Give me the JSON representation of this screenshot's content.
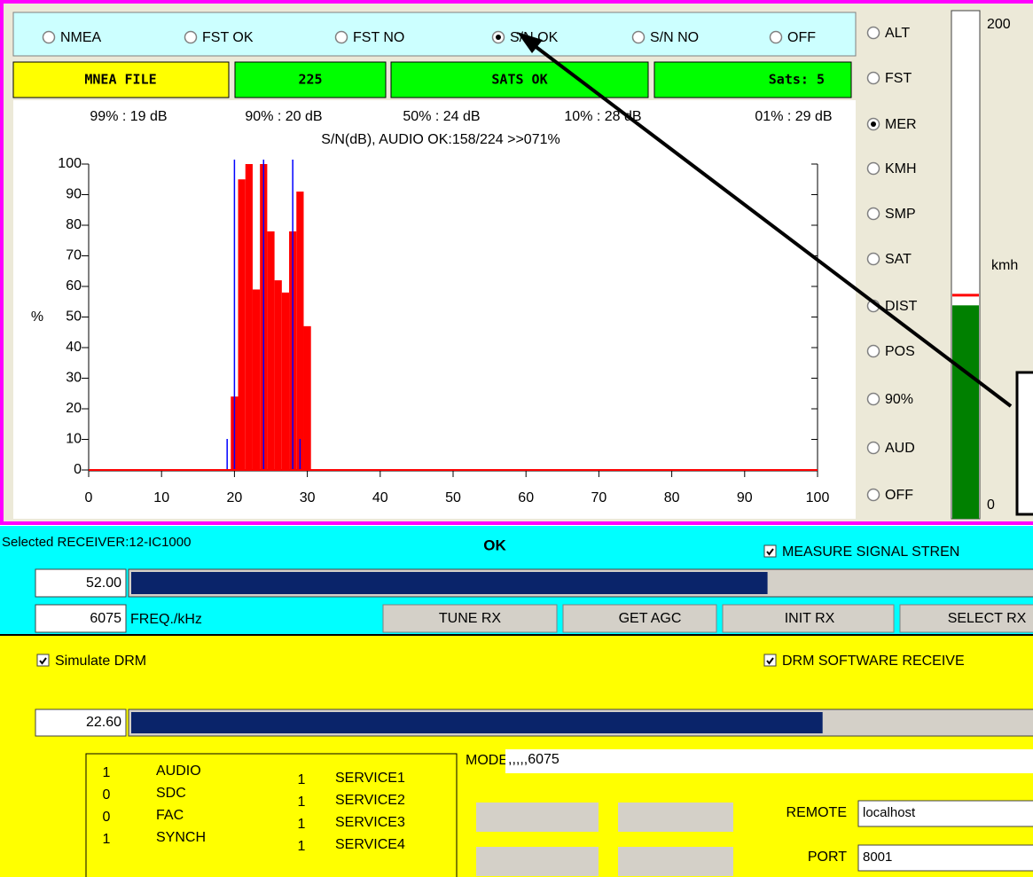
{
  "mode_options": [
    "NMEA",
    "FST OK",
    "FST NO",
    "S/N OK",
    "S/N NO",
    "OFF"
  ],
  "mode_selected": 3,
  "status": [
    "MNEA FILE",
    "225",
    "SATS OK",
    "Sats: 5"
  ],
  "chart_data": {
    "type": "histogram",
    "title": "S/N(dB), AUDIO OK:158/224 >>071%",
    "ylabel": "%",
    "stats": [
      {
        "value": 19,
        "label": "99% : 19 dB"
      },
      {
        "value": 20,
        "label": "90% : 20 dB"
      },
      {
        "value": 24,
        "label": "50% : 24 dB"
      },
      {
        "value": 28,
        "label": "10% : 28 dB"
      },
      {
        "value": 29,
        "label": "01% : 29 dB"
      }
    ],
    "bins": [
      19.5,
      20.5,
      21.5,
      22.5,
      23.5,
      24.5,
      25.5,
      26.5,
      27.5,
      28.5,
      29.5,
      30.5
    ],
    "values": [
      24,
      95,
      100,
      59,
      100,
      78,
      62,
      58,
      78,
      91,
      47
    ],
    "color": "#ff0000",
    "xlim": [
      0,
      100
    ],
    "xticks": [
      0,
      10,
      20,
      30,
      40,
      50,
      60,
      70,
      80,
      90,
      100
    ],
    "ylim": [
      0,
      100
    ],
    "yticks": [
      0,
      10,
      20,
      30,
      40,
      50,
      60,
      70,
      80,
      90,
      100
    ]
  },
  "display_options": [
    "ALT",
    "FST",
    "MER",
    "KMH",
    "SMP",
    "SAT",
    "DIST",
    "POS",
    "90%",
    "AUD",
    "OFF"
  ],
  "display_selected": 2,
  "gauge": {
    "unit": "kmh",
    "ylim": [
      0,
      200
    ],
    "yticks": [
      0,
      200
    ],
    "value": 84,
    "marker": 88
  },
  "receiver": {
    "selected": "Selected RECEIVER:12-IC1000",
    "state": "OK",
    "measure": {
      "label": "MEASURE SIGNAL STREN",
      "checked": true
    },
    "level": {
      "value": 52,
      "label": "52.00"
    },
    "freq": "6075",
    "freq_unit": "FREQ./kHz",
    "buttons": [
      {
        "label": "TUNE RX",
        "enabled": true
      },
      {
        "label": "GET AGC",
        "enabled": true
      },
      {
        "label": "INIT RX",
        "enabled": false
      },
      {
        "label": "SELECT RX",
        "enabled": false
      }
    ]
  },
  "drm": {
    "simulate": {
      "label": "Simulate DRM",
      "checked": true
    },
    "software": {
      "label": "DRM SOFTWARE RECEIVE",
      "checked": true
    },
    "level": {
      "value": 22.6,
      "label": "22.60"
    },
    "status_left": [
      [
        "1",
        "AUDIO"
      ],
      [
        "0",
        "SDC"
      ],
      [
        "0",
        "FAC"
      ],
      [
        "1",
        "SYNCH"
      ]
    ],
    "status_right": [
      [
        "1",
        "SERVICE1"
      ],
      [
        "1",
        "SERVICE2"
      ],
      [
        "1",
        "SERVICE3"
      ],
      [
        "1",
        "SERVICE4"
      ]
    ],
    "mode_label": "MODE:",
    "mode_value": ",,,,,6075",
    "remote_label": "REMOTE",
    "remote": "localhost",
    "port_label": "PORT",
    "port": "8001"
  }
}
